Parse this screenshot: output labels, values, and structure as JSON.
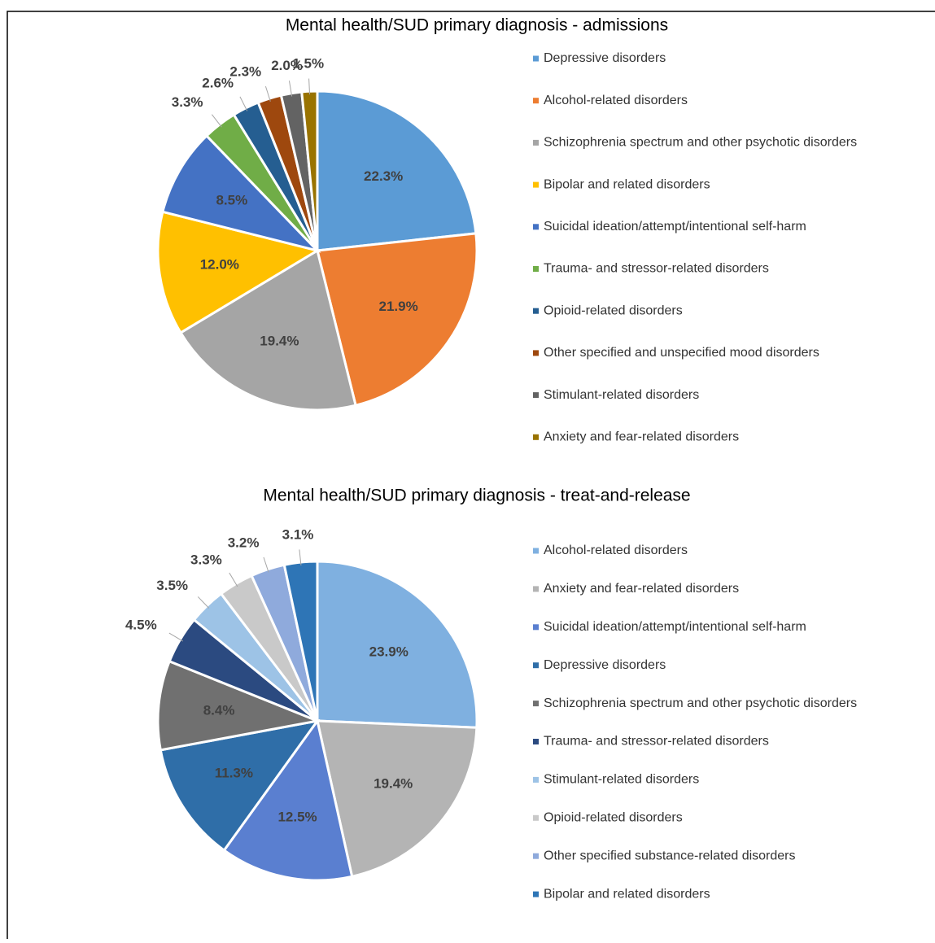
{
  "chart_data": [
    {
      "type": "pie",
      "title": "Mental health/SUD primary diagnosis - admissions",
      "categories": [
        "Depressive disorders",
        "Alcohol-related disorders",
        "Schizophrenia spectrum and other psychotic disorders",
        "Bipolar and related disorders",
        "Suicidal ideation/attempt/intentional self-harm",
        "Trauma- and stressor-related disorders",
        "Opioid-related disorders",
        "Other specified and unspecified mood disorders",
        "Stimulant-related disorders",
        "Anxiety and fear-related disorders"
      ],
      "values": [
        22.3,
        21.9,
        19.4,
        12.0,
        8.5,
        3.3,
        2.6,
        2.3,
        2.0,
        1.5
      ],
      "value_labels": [
        "22.3%",
        "21.9%",
        "19.4%",
        "12.0%",
        "8.5%",
        "3.3%",
        "2.6%",
        "2.3%",
        "2.0%",
        "1.5%"
      ],
      "colors": [
        "#5b9bd5",
        "#ed7d31",
        "#a5a5a5",
        "#ffc000",
        "#4472c4",
        "#70ad47",
        "#255e91",
        "#9e480e",
        "#636363",
        "#997300"
      ],
      "legend": "right"
    },
    {
      "type": "pie",
      "title": "Mental health/SUD primary diagnosis - treat-and-release",
      "categories": [
        "Alcohol-related disorders",
        "Anxiety and fear-related disorders",
        "Suicidal ideation/attempt/intentional self-harm",
        "Depressive disorders",
        "Schizophrenia spectrum and other psychotic disorders",
        "Trauma- and stressor-related disorders",
        "Stimulant-related disorders",
        "Opioid-related disorders",
        "Other specified substance-related disorders",
        "Bipolar and related disorders"
      ],
      "values": [
        23.9,
        19.4,
        12.5,
        11.3,
        8.4,
        4.5,
        3.5,
        3.3,
        3.2,
        3.1
      ],
      "value_labels": [
        "23.9%",
        "19.4%",
        "12.5%",
        "11.3%",
        "8.4%",
        "4.5%",
        "3.5%",
        "3.3%",
        "3.2%",
        "3.1%"
      ],
      "colors": [
        "#7fb0e0",
        "#b4b4b4",
        "#5a7fd0",
        "#2f6ea8",
        "#707070",
        "#2b4a80",
        "#9dc3e6",
        "#c9c9c9",
        "#8faadc",
        "#2e75b6"
      ],
      "legend": "right"
    }
  ]
}
